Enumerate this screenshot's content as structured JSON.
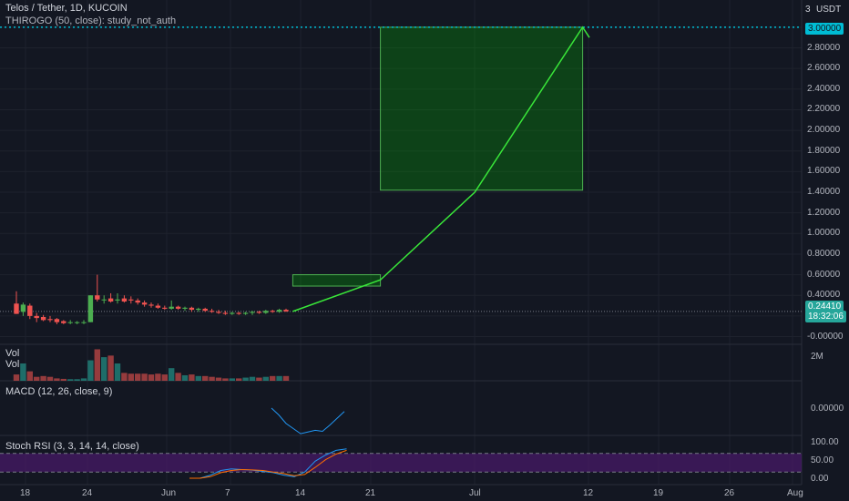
{
  "header": {
    "title": "Telos / Tether, 1D, KUCOIN",
    "indicator": "THIROGO (50, close): study_not_auth",
    "currency": "USDT"
  },
  "price_scale": {
    "ticks": [
      "3.00000",
      "2.80000",
      "2.60000",
      "2.40000",
      "2.20000",
      "2.00000",
      "1.80000",
      "1.60000",
      "1.40000",
      "1.20000",
      "1.00000",
      "0.80000",
      "0.60000",
      "0.40000",
      "0.20000",
      "-0.00000"
    ],
    "tick_values": [
      3.0,
      2.8,
      2.6,
      2.4,
      2.2,
      2.0,
      1.8,
      1.6,
      1.4,
      1.2,
      1.0,
      0.8,
      0.6,
      0.4,
      0.2,
      0.0
    ],
    "top_label": "3",
    "target_tag": "3.00000",
    "last_price_tag": "0.24410",
    "countdown_tag": "18:32:06",
    "target_color": "#00bcd4",
    "last_price_color": "#26a69a"
  },
  "volume_pane": {
    "labels": [
      "Vol",
      "Vol"
    ],
    "scale_label": "2M"
  },
  "macd_pane": {
    "label": "MACD (12, 26, close, 9)",
    "scale_label": "0.00000"
  },
  "rsi_pane": {
    "label": "Stoch RSI (3, 3, 14, 14, close)",
    "scale_labels": [
      "100.00",
      "50.00",
      "0.00"
    ],
    "band_color": "#4a1a6b"
  },
  "time_axis": {
    "labels": [
      "18",
      "24",
      "Jun",
      "7",
      "14",
      "21",
      "Jul",
      "12",
      "19",
      "26",
      "Aug"
    ]
  },
  "chart_data": {
    "type": "candlestick",
    "title": "Telos / Tether, 1D, KUCOIN",
    "x_labels": [
      "18",
      "24",
      "Jun",
      "7",
      "14",
      "21",
      "Jul",
      "12",
      "19",
      "26",
      "Aug"
    ],
    "ylim": [
      0,
      3.0
    ],
    "candles": [
      {
        "o": 0.32,
        "h": 0.44,
        "l": 0.22,
        "c": 0.22
      },
      {
        "o": 0.24,
        "h": 0.33,
        "l": 0.2,
        "c": 0.31
      },
      {
        "o": 0.3,
        "h": 0.32,
        "l": 0.17,
        "c": 0.2
      },
      {
        "o": 0.2,
        "h": 0.23,
        "l": 0.14,
        "c": 0.18
      },
      {
        "o": 0.19,
        "h": 0.21,
        "l": 0.15,
        "c": 0.16
      },
      {
        "o": 0.17,
        "h": 0.2,
        "l": 0.14,
        "c": 0.16
      },
      {
        "o": 0.17,
        "h": 0.18,
        "l": 0.12,
        "c": 0.14
      },
      {
        "o": 0.15,
        "h": 0.16,
        "l": 0.12,
        "c": 0.13
      },
      {
        "o": 0.14,
        "h": 0.16,
        "l": 0.12,
        "c": 0.14
      },
      {
        "o": 0.14,
        "h": 0.15,
        "l": 0.12,
        "c": 0.14
      },
      {
        "o": 0.14,
        "h": 0.16,
        "l": 0.12,
        "c": 0.14
      },
      {
        "o": 0.14,
        "h": 0.4,
        "l": 0.14,
        "c": 0.4
      },
      {
        "o": 0.4,
        "h": 0.6,
        "l": 0.34,
        "c": 0.36
      },
      {
        "o": 0.36,
        "h": 0.4,
        "l": 0.32,
        "c": 0.36
      },
      {
        "o": 0.37,
        "h": 0.42,
        "l": 0.33,
        "c": 0.34
      },
      {
        "o": 0.35,
        "h": 0.42,
        "l": 0.32,
        "c": 0.36
      },
      {
        "o": 0.37,
        "h": 0.4,
        "l": 0.33,
        "c": 0.34
      },
      {
        "o": 0.36,
        "h": 0.39,
        "l": 0.32,
        "c": 0.35
      },
      {
        "o": 0.35,
        "h": 0.37,
        "l": 0.31,
        "c": 0.33
      },
      {
        "o": 0.33,
        "h": 0.35,
        "l": 0.29,
        "c": 0.31
      },
      {
        "o": 0.31,
        "h": 0.33,
        "l": 0.28,
        "c": 0.3
      },
      {
        "o": 0.3,
        "h": 0.32,
        "l": 0.27,
        "c": 0.28
      },
      {
        "o": 0.28,
        "h": 0.3,
        "l": 0.26,
        "c": 0.27
      },
      {
        "o": 0.27,
        "h": 0.35,
        "l": 0.26,
        "c": 0.29
      },
      {
        "o": 0.29,
        "h": 0.3,
        "l": 0.26,
        "c": 0.27
      },
      {
        "o": 0.27,
        "h": 0.29,
        "l": 0.25,
        "c": 0.28
      },
      {
        "o": 0.28,
        "h": 0.29,
        "l": 0.24,
        "c": 0.26
      },
      {
        "o": 0.26,
        "h": 0.28,
        "l": 0.24,
        "c": 0.27
      },
      {
        "o": 0.27,
        "h": 0.28,
        "l": 0.24,
        "c": 0.25
      },
      {
        "o": 0.25,
        "h": 0.27,
        "l": 0.23,
        "c": 0.24
      },
      {
        "o": 0.24,
        "h": 0.26,
        "l": 0.22,
        "c": 0.23
      },
      {
        "o": 0.23,
        "h": 0.25,
        "l": 0.21,
        "c": 0.22
      },
      {
        "o": 0.22,
        "h": 0.24,
        "l": 0.21,
        "c": 0.23
      },
      {
        "o": 0.23,
        "h": 0.24,
        "l": 0.21,
        "c": 0.22
      },
      {
        "o": 0.22,
        "h": 0.24,
        "l": 0.21,
        "c": 0.23
      },
      {
        "o": 0.23,
        "h": 0.25,
        "l": 0.21,
        "c": 0.24
      },
      {
        "o": 0.24,
        "h": 0.25,
        "l": 0.22,
        "c": 0.23
      },
      {
        "o": 0.23,
        "h": 0.26,
        "l": 0.22,
        "c": 0.25
      },
      {
        "o": 0.25,
        "h": 0.26,
        "l": 0.23,
        "c": 0.24
      },
      {
        "o": 0.24,
        "h": 0.27,
        "l": 0.23,
        "c": 0.26
      },
      {
        "o": 0.26,
        "h": 0.27,
        "l": 0.24,
        "c": 0.244
      }
    ],
    "volume": [
      0.4,
      1.1,
      0.6,
      0.25,
      0.3,
      0.25,
      0.15,
      0.12,
      0.1,
      0.1,
      0.15,
      1.3,
      2.0,
      1.5,
      1.6,
      1.1,
      0.5,
      0.45,
      0.45,
      0.45,
      0.4,
      0.45,
      0.4,
      0.8,
      0.5,
      0.35,
      0.4,
      0.3,
      0.3,
      0.25,
      0.2,
      0.15,
      0.15,
      0.15,
      0.2,
      0.25,
      0.2,
      0.25,
      0.3,
      0.3,
      0.3
    ],
    "projection_path": [
      {
        "date_index": 41,
        "price": 0.244
      },
      {
        "date_index": 54,
        "price": 0.55
      },
      {
        "date_index": 68,
        "price": 1.4
      },
      {
        "date_index": 84,
        "price": 3.0
      },
      {
        "date_index": 85,
        "price": 2.9
      }
    ],
    "target_zones": [
      {
        "from_index": 41,
        "to_index": 54,
        "low": 0.49,
        "high": 0.6
      },
      {
        "from_index": 54,
        "to_index": 84,
        "low": 1.42,
        "high": 3.0
      }
    ],
    "macd": [
      0.0,
      -0.02,
      -0.045,
      -0.06,
      -0.075,
      -0.07,
      -0.065,
      -0.068,
      -0.05,
      -0.03,
      -0.01
    ],
    "stoch_rsi_k": [
      0,
      0,
      10,
      25,
      30,
      28,
      26,
      22,
      18,
      10,
      5,
      20,
      55,
      75,
      90,
      95
    ],
    "stoch_rsi_d": [
      0,
      0,
      5,
      18,
      25,
      28,
      27,
      25,
      20,
      15,
      8,
      12,
      35,
      60,
      78,
      90
    ],
    "rsi_bands": [
      80,
      20
    ]
  }
}
